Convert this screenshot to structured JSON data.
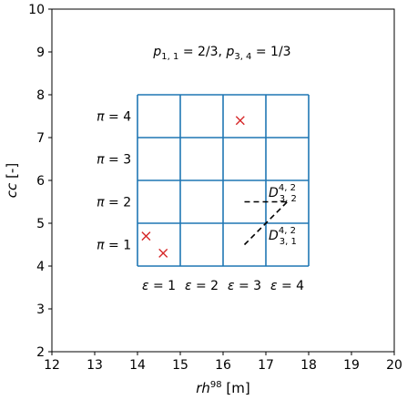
{
  "chart_data": {
    "type": "scatter",
    "xlabel": "rh⁹⁸ [m]",
    "ylabel": "cc [-]",
    "xlim": [
      12,
      20
    ],
    "ylim": [
      2,
      10
    ],
    "x_ticks": [
      "12",
      "13",
      "14",
      "15",
      "16",
      "17",
      "18",
      "19",
      "20"
    ],
    "y_ticks": [
      "2",
      "3",
      "4",
      "5",
      "6",
      "7",
      "8",
      "9",
      "10"
    ],
    "grid_x": [
      14,
      15,
      16,
      17,
      18
    ],
    "grid_y": [
      4,
      5,
      6,
      7,
      8
    ],
    "grid_color": "#1f77b4",
    "marker_color": "#d62728",
    "markers": [
      {
        "x": 14.2,
        "y": 4.7
      },
      {
        "x": 14.6,
        "y": 4.3
      },
      {
        "x": 16.4,
        "y": 7.4
      }
    ],
    "dashed_segments": [
      {
        "x": [
          16.5,
          17.5
        ],
        "y": [
          5.5,
          5.5
        ]
      },
      {
        "x": [
          16.5,
          17.5
        ],
        "y": [
          4.5,
          5.5
        ]
      }
    ],
    "annotations": {
      "title_line": "p1,1 = 2/3,  p3,4 = 1/3",
      "pi_labels": [
        {
          "text": "π = 4",
          "y": 7.5
        },
        {
          "text": "π = 3",
          "y": 6.5
        },
        {
          "text": "π = 2",
          "y": 5.5
        },
        {
          "text": "π = 1",
          "y": 4.5
        }
      ],
      "epsilon_labels": [
        {
          "text": "ε = 1",
          "x": 14.5
        },
        {
          "text": "ε = 2",
          "x": 15.5
        },
        {
          "text": "ε = 3",
          "x": 16.5
        },
        {
          "text": "ε = 4",
          "x": 17.5
        }
      ],
      "d32_label": "D3,2 4,2",
      "d31_label": "D3,1 4,2"
    }
  }
}
